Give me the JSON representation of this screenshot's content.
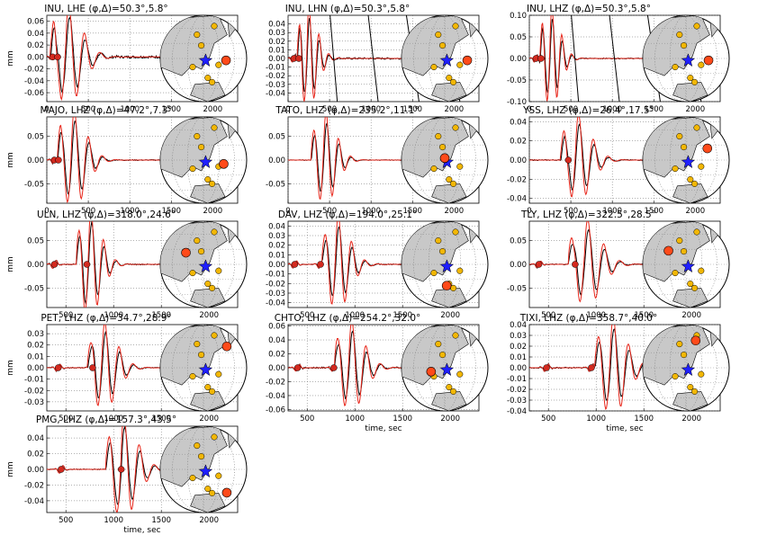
{
  "figure": {
    "ylabel": "mm",
    "xlabel": "time, sec",
    "colors": {
      "data": "#000000",
      "synthetic": "#e8261a",
      "marker": "#d42a1f",
      "station_highlight": "#ff4a1a",
      "station": "#f2b705",
      "event_star": "#1f1fff",
      "globe_land": "#c8c8c8",
      "globe_ocean": "#ffffff"
    }
  },
  "chart_data": [
    {
      "type": "line",
      "title": "INU, LHE $(\\phi,\\Delta)$=50.3°,5.8°",
      "title_plain": "INU, LHE (φ,Δ)=50.3°,5.8°",
      "xlim": [
        0,
        2300
      ],
      "ylim": [
        -0.075,
        0.07
      ],
      "xticks": [
        "0",
        "500",
        "1000",
        "1500",
        "2000"
      ],
      "yticks": [
        "0.06",
        "0.04",
        "0.02",
        "0.00",
        "-0.02",
        "-0.04",
        "-0.06"
      ],
      "markers_x": [
        70,
        130
      ],
      "signal": {
        "t0": 230,
        "amp": 0.065,
        "period": 190,
        "decay": 0.0075
      },
      "noise": 0.004
    },
    {
      "type": "line",
      "title_plain": "INU, LHN (φ,Δ)=50.3°,5.8°",
      "xlim": [
        0,
        2300
      ],
      "ylim": [
        -0.05,
        0.05
      ],
      "xticks": [
        "0",
        "500",
        "1000",
        "1500",
        "2000"
      ],
      "yticks": [
        "0.04",
        "0.03",
        "0.02",
        "0.01",
        "0.00",
        "-0.01",
        "-0.02",
        "-0.03",
        "-0.04"
      ],
      "markers_x": [
        70,
        130
      ],
      "signal": {
        "t0": 230,
        "amp": 0.045,
        "period": 120,
        "decay": 0.01
      },
      "noise": 0.002,
      "glitch": true
    },
    {
      "type": "line",
      "title_plain": "INU, LHZ (φ,Δ)=50.3°,5.8°",
      "xlim": [
        0,
        2300
      ],
      "ylim": [
        -0.1,
        0.1
      ],
      "xticks": [
        "0",
        "500",
        "1000",
        "1500",
        "2000"
      ],
      "yticks": [
        "0.10",
        "0.05",
        "0.00",
        "-0.05",
        "-0.10"
      ],
      "markers_x": [
        80,
        140
      ],
      "signal": {
        "t0": 250,
        "amp": 0.09,
        "period": 120,
        "decay": 0.012
      },
      "noise": 0.002,
      "glitch": true
    },
    {
      "type": "line",
      "title_plain": "MAJO, LHZ (φ,Δ)=47.2°,7.3°",
      "xlim": [
        0,
        2300
      ],
      "ylim": [
        -0.09,
        0.09
      ],
      "xticks": [
        "0",
        "500",
        "1000",
        "1500",
        "2000"
      ],
      "yticks": [
        "0.05",
        "0.00",
        "-0.05"
      ],
      "markers_x": [
        90,
        140
      ],
      "signal": {
        "t0": 300,
        "amp": 0.08,
        "period": 170,
        "decay": 0.009
      },
      "noise": 0.002
    },
    {
      "type": "line",
      "title_plain": "TATO, LHZ (φ,Δ)=235.2°,11.1°",
      "xlim": [
        0,
        2300
      ],
      "ylim": [
        -0.09,
        0.09
      ],
      "xticks": [
        "0",
        "500",
        "1000",
        "1500",
        "2000"
      ],
      "yticks": [
        "0.05",
        "0.00",
        "-0.05"
      ],
      "markers_x": [],
      "signal": {
        "t0": 430,
        "amp": 0.075,
        "period": 150,
        "decay": 0.011
      },
      "noise": 0.001
    },
    {
      "type": "line",
      "title_plain": "YSS, LHZ (φ,Δ)=26.4°,17.5°",
      "xlim": [
        0,
        2300
      ],
      "ylim": [
        -0.045,
        0.045
      ],
      "xticks": [
        "0",
        "500",
        "1000",
        "1500",
        "2000"
      ],
      "yticks": [
        "0.04",
        "0.02",
        "0.00",
        "-0.02",
        "-0.04"
      ],
      "markers_x": [
        470
      ],
      "signal": {
        "t0": 560,
        "amp": 0.036,
        "period": 180,
        "decay": 0.0095
      },
      "noise": 0.001
    },
    {
      "type": "line",
      "title_plain": "ULN, LHZ (φ,Δ)=318.0°,24.6°",
      "xlim": [
        300,
        2300
      ],
      "ylim": [
        -0.09,
        0.09
      ],
      "xticks": [
        "500",
        "1000",
        "1500",
        "2000"
      ],
      "yticks": [
        "0.05",
        "0.00",
        "-0.05"
      ],
      "markers_x": [
        380,
        720
      ],
      "signal": {
        "t0": 740,
        "amp": 0.085,
        "period": 130,
        "decay": 0.012
      },
      "noise": 0.002
    },
    {
      "type": "line",
      "title_plain": "DAV, LHZ (φ,Δ)=194.0°,25.1°",
      "xlim": [
        300,
        2300
      ],
      "ylim": [
        -0.045,
        0.045
      ],
      "xticks": [
        "500",
        "1000",
        "1500",
        "2000"
      ],
      "yticks": [
        "0.04",
        "0.03",
        "0.02",
        "0.01",
        "0.00",
        "-0.01",
        "-0.02",
        "-0.03",
        "-0.04"
      ],
      "markers_x": [
        370,
        640
      ],
      "signal": {
        "t0": 800,
        "amp": 0.038,
        "period": 140,
        "decay": 0.0085
      },
      "noise": 0.001
    },
    {
      "type": "line",
      "title_plain": "TLY, LHZ (φ,Δ)=322.5°,28.5°",
      "xlim": [
        300,
        2300
      ],
      "ylim": [
        -0.09,
        0.09
      ],
      "xticks": [
        "500",
        "1000",
        "1500",
        "2000"
      ],
      "yticks": [
        "0.05",
        "0.00",
        "-0.05"
      ],
      "markers_x": [
        400,
        780
      ],
      "signal": {
        "t0": 880,
        "amp": 0.07,
        "period": 170,
        "decay": 0.009
      },
      "noise": 0.002
    },
    {
      "type": "line",
      "title_plain": "PET, LHZ (φ,Δ)=34.7°,28.9°",
      "xlim": [
        300,
        2300
      ],
      "ylim": [
        -0.038,
        0.038
      ],
      "xticks": [
        "500",
        "1000",
        "1500",
        "2000"
      ],
      "yticks": [
        "0.03",
        "0.02",
        "0.01",
        "0.00",
        "-0.01",
        "-0.02",
        "-0.03"
      ],
      "markers_x": [
        420,
        780
      ],
      "signal": {
        "t0": 880,
        "amp": 0.03,
        "period": 150,
        "decay": 0.009
      },
      "noise": 0.0008
    },
    {
      "type": "line",
      "title_plain": "CHTO, LHZ (φ,Δ)=254.2°,32.0°",
      "xlim": [
        300,
        2300
      ],
      "ylim": [
        -0.062,
        0.062
      ],
      "xticks": [
        "500",
        "1000",
        "1500",
        "2000"
      ],
      "yticks": [
        "0.06",
        "0.04",
        "0.02",
        "0.00",
        "-0.02",
        "-0.04",
        "-0.06"
      ],
      "markers_x": [
        400,
        780
      ],
      "signal": {
        "t0": 940,
        "amp": 0.05,
        "period": 150,
        "decay": 0.0085
      },
      "noise": 0.002
    },
    {
      "type": "line",
      "title_plain": "TIXI, LHZ (φ,Δ)=358.7°,40.0°",
      "xlim": [
        300,
        2300
      ],
      "ylim": [
        -0.04,
        0.04
      ],
      "xticks": [
        "500",
        "1000",
        "1500",
        "2000"
      ],
      "yticks": [
        "0.04",
        "0.03",
        "0.02",
        "0.01",
        "0.00",
        "-0.01",
        "-0.02",
        "-0.03",
        "-0.04"
      ],
      "markers_x": [
        480,
        950
      ],
      "signal": {
        "t0": 1150,
        "amp": 0.035,
        "period": 160,
        "decay": 0.008
      },
      "noise": 0.001
    },
    {
      "type": "line",
      "title_plain": "PMG, LHZ (φ,Δ)=157.3°,43.5°",
      "xlim": [
        300,
        2300
      ],
      "ylim": [
        -0.055,
        0.055
      ],
      "xticks": [
        "500",
        "1000",
        "1500",
        "2000"
      ],
      "yticks": [
        "0.04",
        "0.02",
        "0.00",
        "-0.02",
        "-0.04"
      ],
      "markers_x": [
        450,
        1080
      ],
      "signal": {
        "t0": 1080,
        "amp": 0.05,
        "period": 160,
        "decay": 0.008
      },
      "noise": 0.001
    }
  ],
  "globes": [
    {
      "station": [
        0.58,
        0.05
      ]
    },
    {
      "station": [
        0.58,
        0.05
      ]
    },
    {
      "station": [
        0.58,
        0.05
      ]
    },
    {
      "station": [
        0.52,
        0.1
      ]
    },
    {
      "station": [
        0.0,
        -0.05
      ]
    },
    {
      "station": [
        0.55,
        -0.3
      ]
    },
    {
      "station": [
        -0.45,
        -0.3
      ]
    },
    {
      "station": [
        0.05,
        0.55
      ]
    },
    {
      "station": [
        -0.45,
        -0.35
      ]
    },
    {
      "station": [
        0.6,
        -0.55
      ]
    },
    {
      "station": [
        -0.35,
        0.1
      ]
    },
    {
      "station": [
        0.25,
        -0.7
      ]
    },
    {
      "station": [
        0.6,
        0.6
      ]
    }
  ]
}
